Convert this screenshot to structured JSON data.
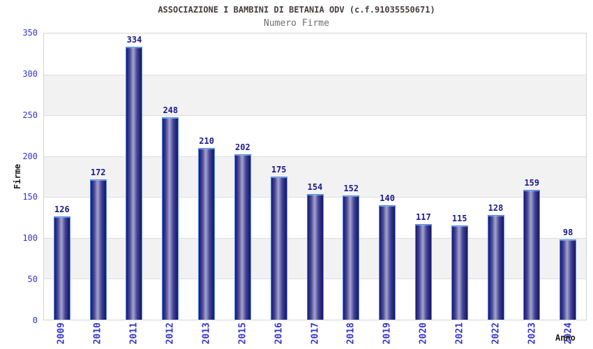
{
  "chart": {
    "title": "ASSOCIAZIONE I BAMBINI DI BETANIA ODV (c.f.91035550671)",
    "subtitle": "Numero Firme",
    "ylabel": "Firme",
    "xlabel": "Anno"
  },
  "chart_data": {
    "type": "bar",
    "title": "ASSOCIAZIONE I BAMBINI DI BETANIA ODV (c.f.91035550671)",
    "subtitle": "Numero Firme",
    "xlabel": "Anno",
    "ylabel": "Firme",
    "categories": [
      "2009",
      "2010",
      "2011",
      "2012",
      "2013",
      "2015",
      "2016",
      "2017",
      "2018",
      "2019",
      "2020",
      "2021",
      "2022",
      "2023",
      "2024"
    ],
    "values": [
      126,
      172,
      334,
      248,
      210,
      202,
      175,
      154,
      152,
      140,
      117,
      115,
      128,
      159,
      98
    ],
    "ylim": [
      0,
      350
    ],
    "ytick_step": 50,
    "yticks": [
      0,
      50,
      100,
      150,
      200,
      250,
      300,
      350
    ],
    "grid": "horizontal alternating bands with gridlines every 50",
    "legend_position": "none",
    "bar_labels_shown": true
  },
  "colors": {
    "background": "#ffffff",
    "title_text": "#473d3d",
    "subtitle_text": "#6e6e6e",
    "axis_tick_text": "#3434cc",
    "bar_value_text": "#1a1a8c",
    "axis_name_text": "#1a1a1a",
    "bar_dark": "#1c1c70",
    "bar_highlight": "#a4a4cd",
    "bar_border": "#4d8ae8",
    "band_gray": "#f2f2f2",
    "grid_line": "#dcdcdc",
    "plot_border": "#d4d4d4"
  }
}
